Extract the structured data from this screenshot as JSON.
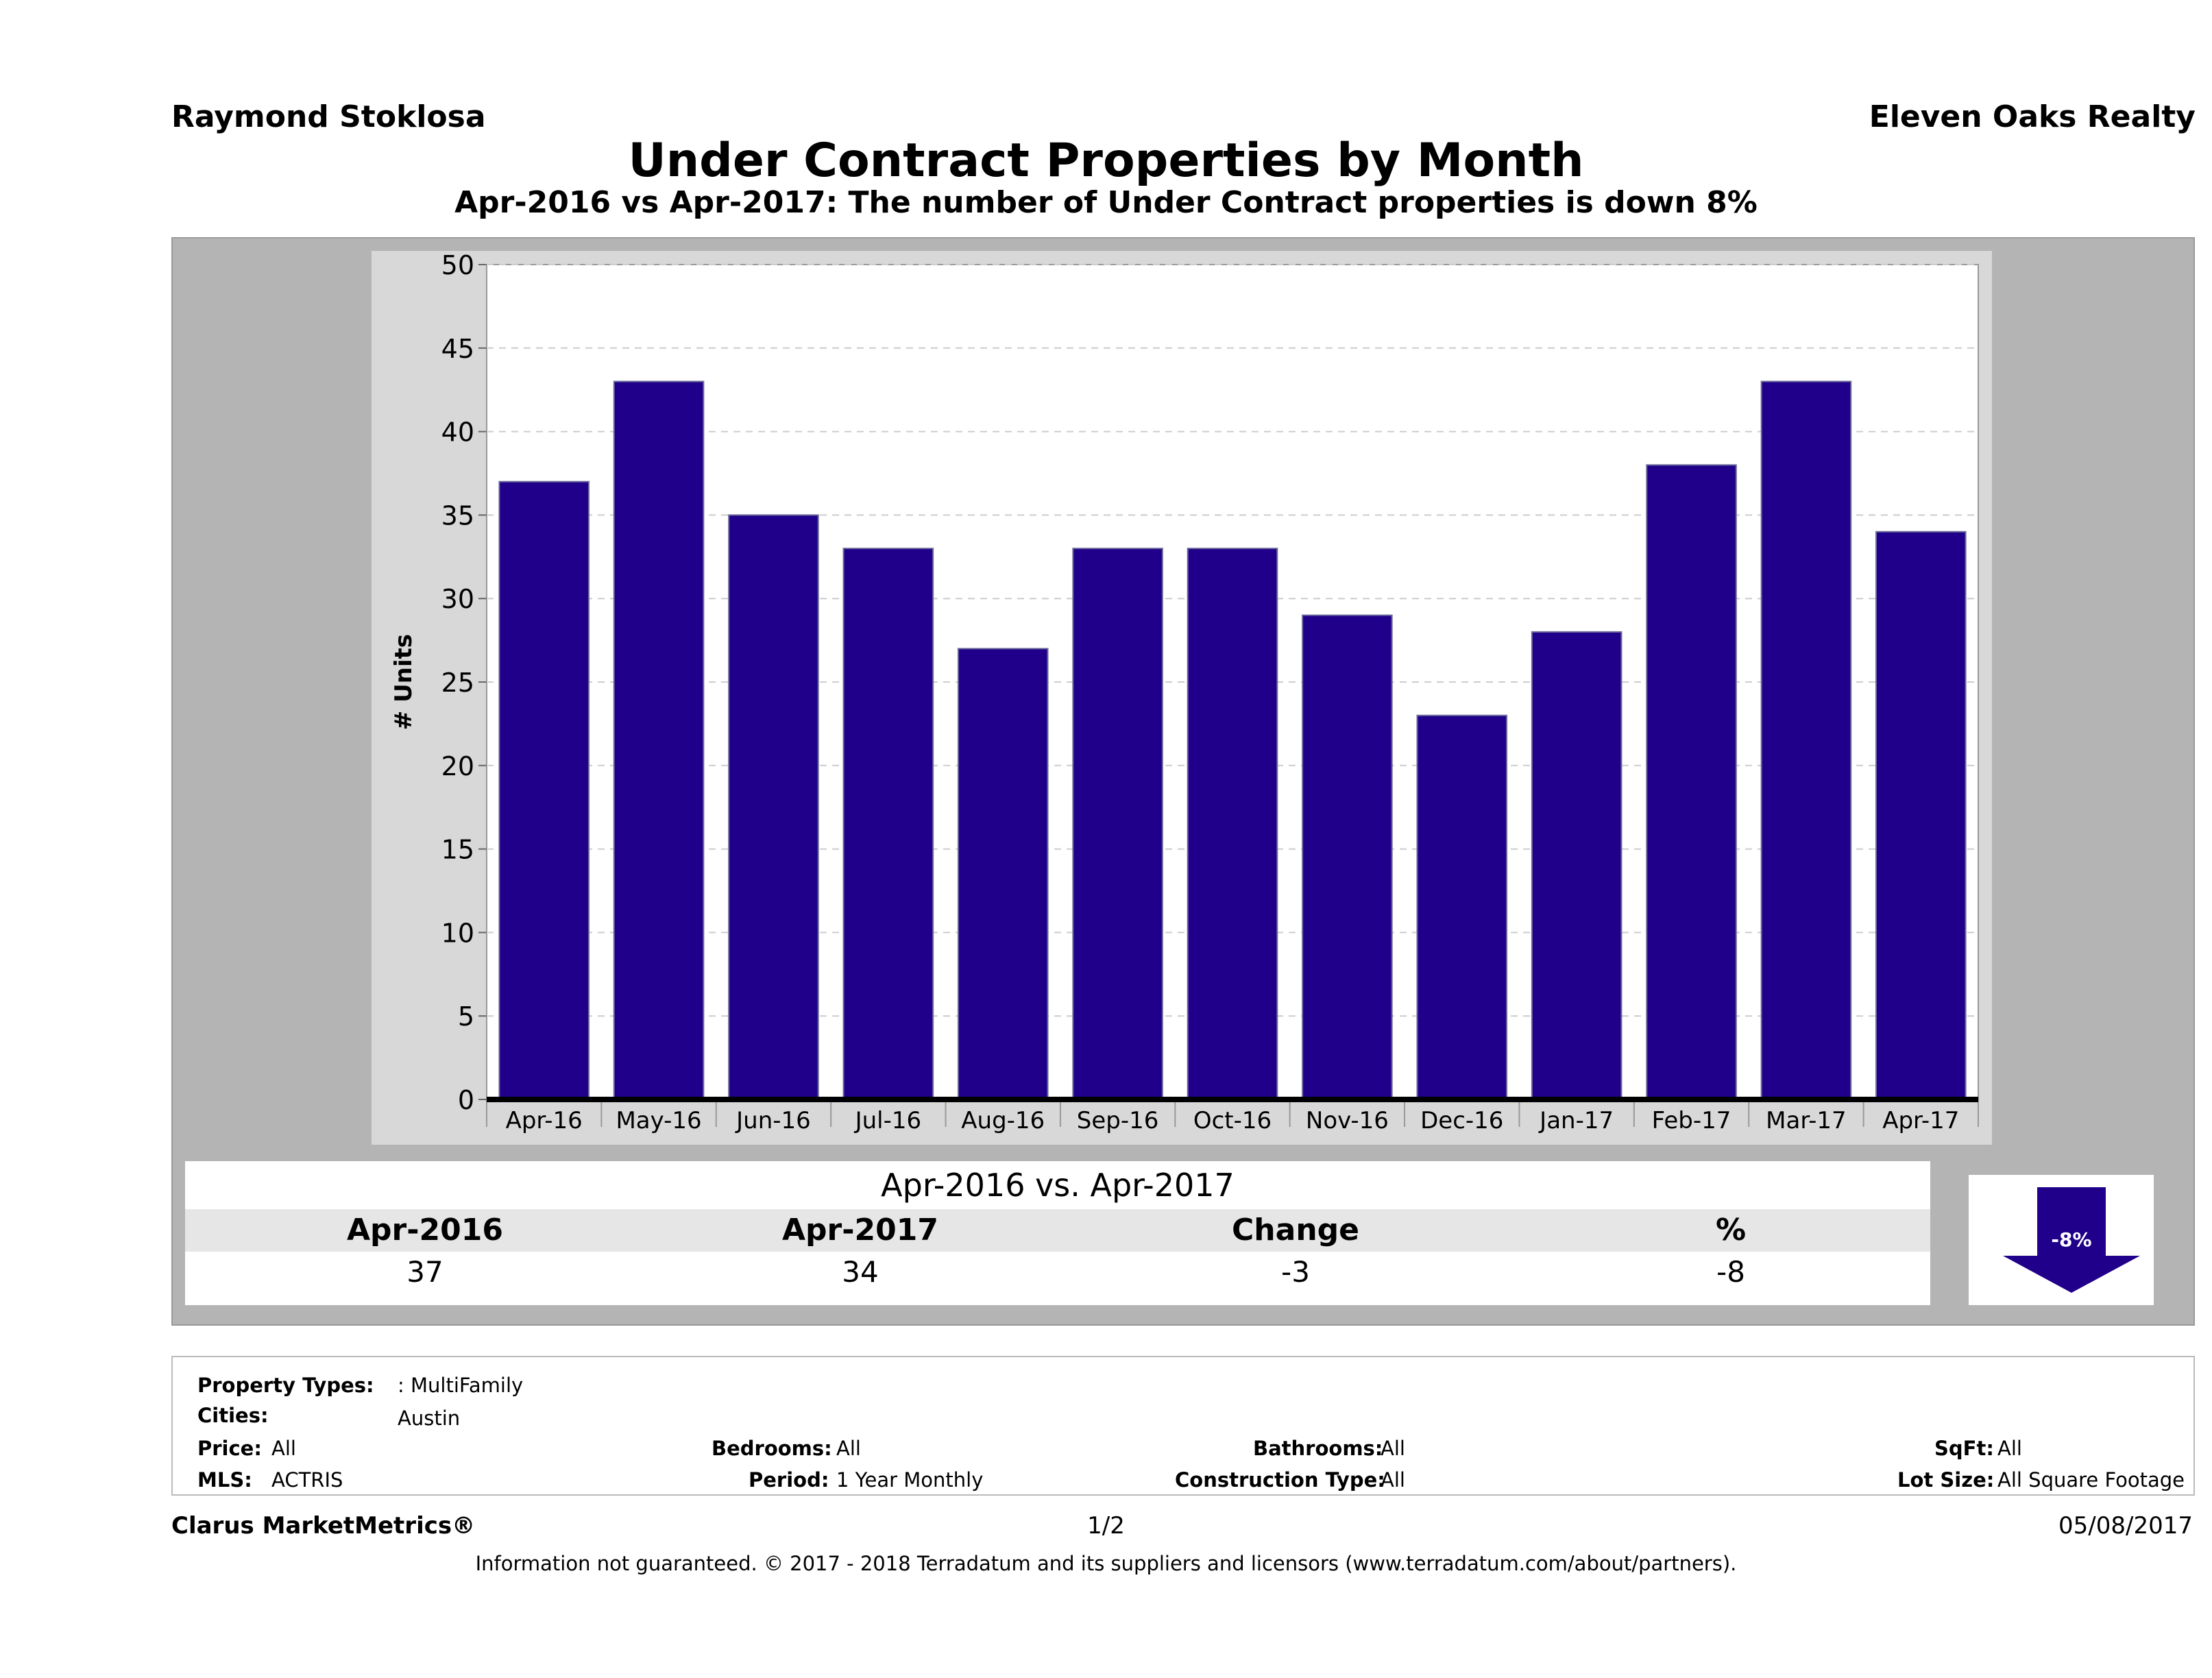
{
  "header": {
    "agent": "Raymond Stoklosa",
    "company": "Eleven Oaks Realty",
    "title": "Under Contract Properties by Month",
    "subtitle": "Apr-2016 vs Apr-2017: The number of Under Contract  properties is down 8%"
  },
  "chart_data": {
    "type": "bar",
    "categories": [
      "Apr-16",
      "May-16",
      "Jun-16",
      "Jul-16",
      "Aug-16",
      "Sep-16",
      "Oct-16",
      "Nov-16",
      "Dec-16",
      "Jan-17",
      "Feb-17",
      "Mar-17",
      "Apr-17"
    ],
    "values": [
      37,
      43,
      35,
      33,
      27,
      33,
      33,
      29,
      23,
      28,
      38,
      43,
      34
    ],
    "ylabel": "# Units",
    "ylim": [
      0,
      50
    ],
    "yticks": [
      0,
      5,
      10,
      15,
      20,
      25,
      30,
      35,
      40,
      45,
      50
    ],
    "grid": true,
    "bar_color": "#20008a"
  },
  "summary": {
    "heading": "Apr-2016 vs. Apr-2017",
    "columns": [
      "Apr-2016",
      "Apr-2017",
      "Change",
      "%"
    ],
    "values": [
      "37",
      "34",
      "-3",
      "-8"
    ],
    "arrow_label": "-8%",
    "arrow_color": "#20008a"
  },
  "filters": {
    "property_types_label": "Property Types:",
    "property_types_value": ": MultiFamily",
    "cities_label": "Cities:",
    "cities_value": "Austin",
    "price_label": "Price:",
    "price_value": "All",
    "mls_label": "MLS:",
    "mls_value": "ACTRIS",
    "bedrooms_label": "Bedrooms:",
    "bedrooms_value": "All",
    "period_label": "Period:",
    "period_value": "1 Year Monthly",
    "bathrooms_label": "Bathrooms:",
    "bathrooms_value": "All",
    "construction_label": "Construction Type:",
    "construction_value": "All",
    "sqft_label": "SqFt:",
    "sqft_value": "All",
    "lot_label": "Lot Size:",
    "lot_value": "All Square Footage"
  },
  "footer": {
    "brand": "Clarus MarketMetrics®",
    "page": "1/2",
    "date": "05/08/2017",
    "disclaimer": "Information not guaranteed. © 2017 - 2018 Terradatum and its suppliers and licensors (www.terradatum.com/about/partners)."
  }
}
